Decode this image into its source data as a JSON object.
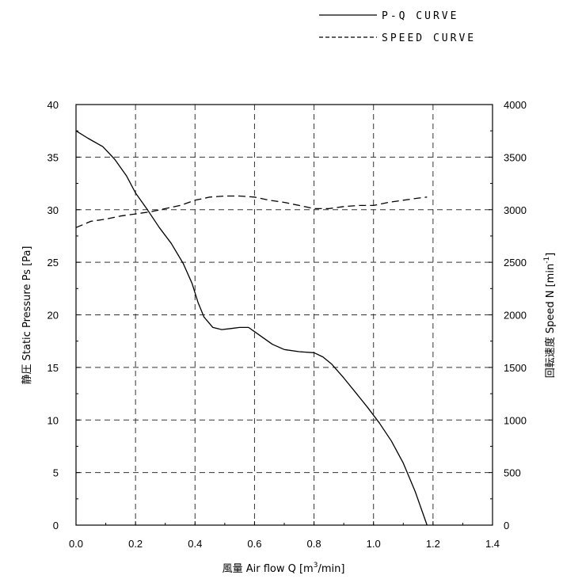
{
  "chart_data": {
    "type": "line",
    "x_title": {
      "main": "風量 Air flow  Q [m",
      "sup": "3",
      "tail": "/min]"
    },
    "y_left_title": "静圧 Static Pressure Ps [Pa]",
    "y_right_title": {
      "main": "回転速度 Speed N [min",
      "sup": "-1",
      "tail": "]"
    },
    "x_ticks": [
      "0.0",
      "0.2",
      "0.4",
      "0.6",
      "0.8",
      "1.0",
      "1.2",
      "1.4"
    ],
    "y_left_ticks": [
      "0",
      "5",
      "10",
      "15",
      "20",
      "25",
      "30",
      "35",
      "40"
    ],
    "y_right_ticks": [
      "0",
      "500",
      "1000",
      "1500",
      "2000",
      "2500",
      "3000",
      "3500",
      "4000"
    ],
    "xlim": [
      0,
      1.4
    ],
    "ylim_left": [
      0,
      40
    ],
    "ylim_right": [
      0,
      4000
    ],
    "grid": true,
    "legend_position": "top-right",
    "series": [
      {
        "name": "P-Q CURVE",
        "axis": "left",
        "style": "solid",
        "x": [
          0.0,
          0.04,
          0.09,
          0.13,
          0.17,
          0.2,
          0.24,
          0.28,
          0.32,
          0.36,
          0.39,
          0.41,
          0.43,
          0.46,
          0.49,
          0.52,
          0.55,
          0.58,
          0.6,
          0.63,
          0.66,
          0.7,
          0.75,
          0.8,
          0.83,
          0.86,
          0.9,
          0.94,
          0.98,
          1.02,
          1.06,
          1.1,
          1.14,
          1.18
        ],
        "y": [
          37.5,
          36.8,
          36.0,
          34.8,
          33.2,
          31.6,
          30.0,
          28.3,
          26.8,
          24.9,
          23.0,
          21.2,
          19.8,
          18.8,
          18.6,
          18.7,
          18.8,
          18.8,
          18.4,
          17.8,
          17.2,
          16.7,
          16.5,
          16.4,
          16.0,
          15.3,
          14.0,
          12.6,
          11.2,
          9.7,
          8.0,
          5.9,
          3.2,
          0.0
        ]
      },
      {
        "name": "SPEED CURVE",
        "axis": "right",
        "style": "dashed",
        "x": [
          0.0,
          0.05,
          0.1,
          0.15,
          0.2,
          0.25,
          0.3,
          0.35,
          0.4,
          0.45,
          0.5,
          0.55,
          0.6,
          0.65,
          0.7,
          0.75,
          0.8,
          0.85,
          0.9,
          0.95,
          1.0,
          1.05,
          1.1,
          1.15,
          1.18
        ],
        "y": [
          2830,
          2890,
          2910,
          2940,
          2960,
          2980,
          3010,
          3040,
          3090,
          3120,
          3130,
          3130,
          3120,
          3090,
          3070,
          3040,
          3010,
          3010,
          3030,
          3040,
          3040,
          3070,
          3090,
          3110,
          3120
        ]
      }
    ]
  }
}
